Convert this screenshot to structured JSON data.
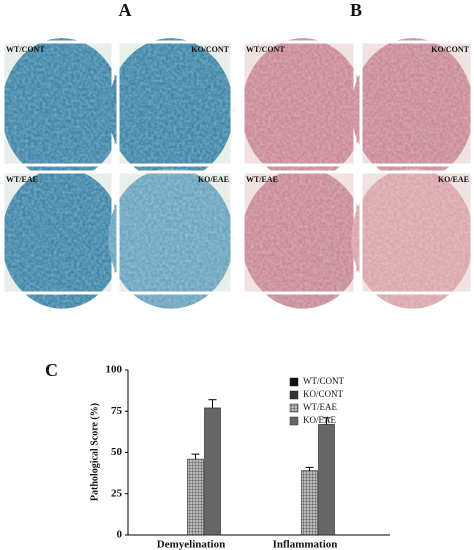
{
  "figure": {
    "panels": [
      {
        "label": "A",
        "images": [
          "WT/CONT",
          "KO/CONT",
          "WT/EAE",
          "KO/EAE"
        ]
      },
      {
        "label": "B",
        "images": [
          "WT/CONT",
          "KO/CONT",
          "WT/EAE",
          "KO/EAE"
        ]
      }
    ],
    "chart_label": "C"
  },
  "chart_data": {
    "type": "bar",
    "ylabel": "Pathological Score (%)",
    "categories": [
      "Demyelination",
      "Inflammation"
    ],
    "series": [
      {
        "name": "WT/CONT",
        "color": "#111111",
        "values": [
          0,
          0
        ],
        "errors": [
          null,
          null
        ]
      },
      {
        "name": "KO/CONT",
        "color": "#333333",
        "values": [
          0,
          0
        ],
        "errors": [
          null,
          null
        ]
      },
      {
        "name": "WT/EAE",
        "color": "#8a8a8a",
        "hatch": true,
        "values": [
          46,
          39
        ],
        "errors": [
          3,
          2
        ]
      },
      {
        "name": "KO/EAE",
        "color": "#666666",
        "values": [
          77,
          67
        ],
        "errors": [
          5,
          4
        ]
      }
    ],
    "ylim": [
      0,
      100
    ],
    "yticks": [
      0,
      25,
      50,
      75,
      100
    ],
    "legend": "upper right"
  }
}
